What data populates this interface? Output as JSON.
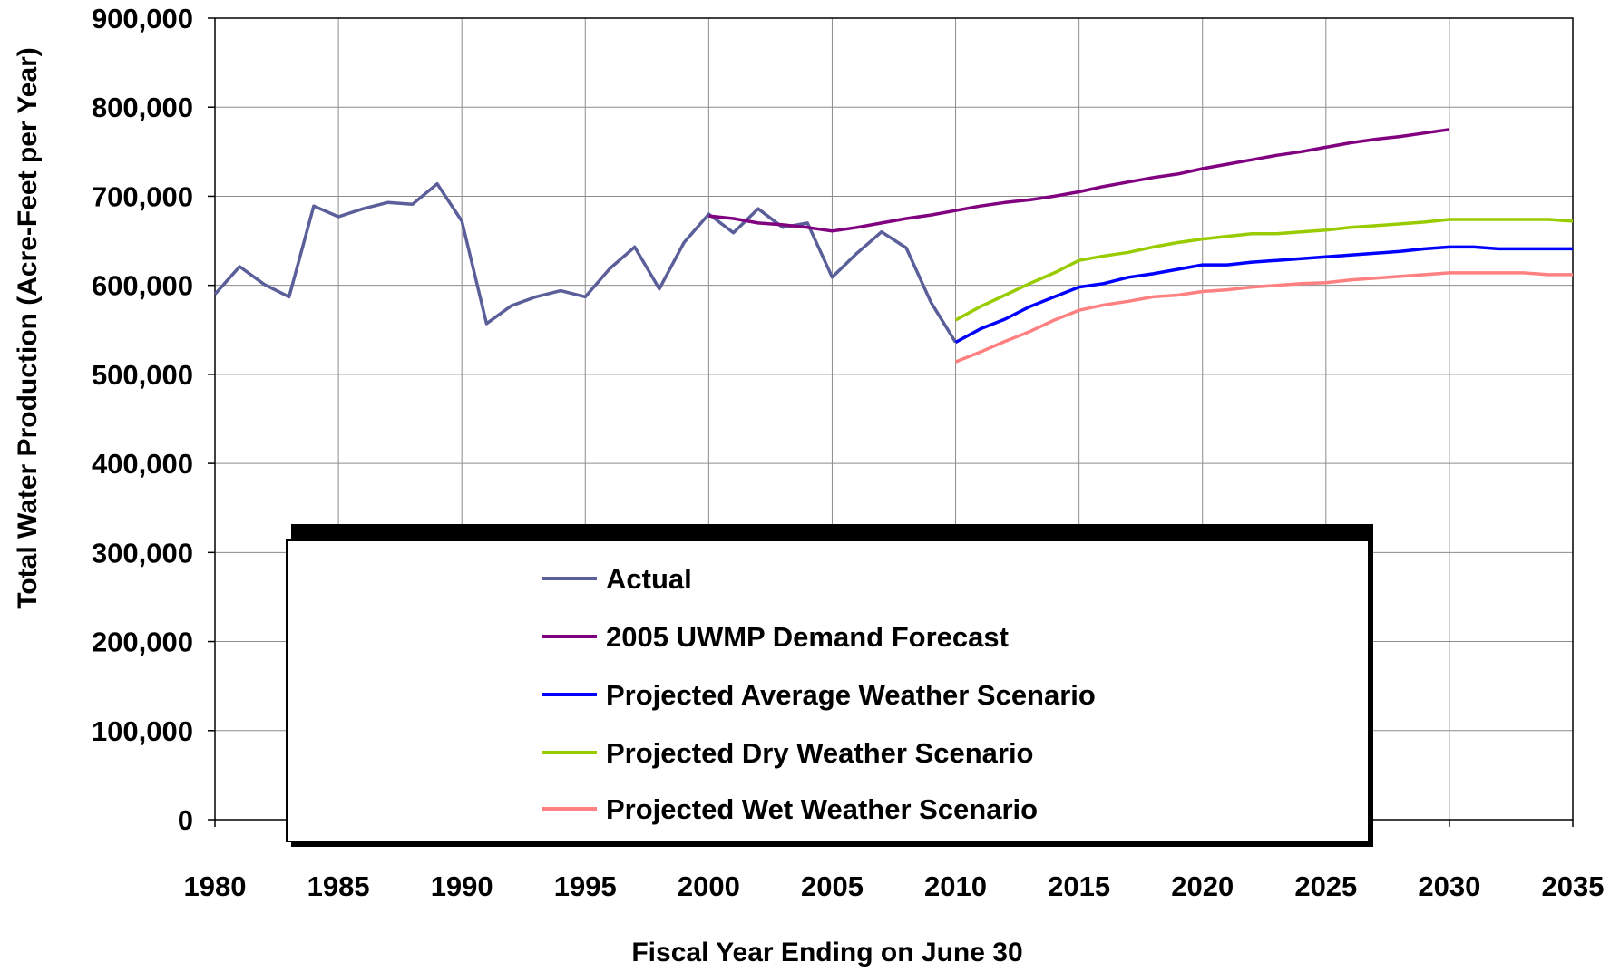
{
  "chart_data": {
    "type": "line",
    "title": "",
    "xlabel": "Fiscal Year Ending on June 30",
    "ylabel": "Total Water Production (Acre-Feet per Year)",
    "xlim": [
      1980,
      2035
    ],
    "ylim": [
      0,
      900000
    ],
    "x_ticks": [
      "1980",
      "1985",
      "1990",
      "1995",
      "2000",
      "2005",
      "2010",
      "2015",
      "2020",
      "2025",
      "2030",
      "2035"
    ],
    "y_ticks": [
      "0",
      "100,000",
      "200,000",
      "300,000",
      "400,000",
      "500,000",
      "600,000",
      "700,000",
      "800,000",
      "900,000"
    ],
    "grid": true,
    "legend_position": "bottom-center",
    "series": [
      {
        "name": "Actual",
        "color": "#5B5F99",
        "x": [
          1980,
          1981,
          1982,
          1983,
          1984,
          1985,
          1986,
          1987,
          1988,
          1989,
          1990,
          1991,
          1992,
          1993,
          1994,
          1995,
          1996,
          1997,
          1998,
          1999,
          2000,
          2001,
          2002,
          2003,
          2004,
          2005,
          2006,
          2007,
          2008,
          2009,
          2010
        ],
        "y": [
          590000,
          621000,
          601000,
          587000,
          689000,
          677000,
          686000,
          693000,
          691000,
          714000,
          672000,
          557000,
          577000,
          587000,
          594000,
          587000,
          619000,
          643000,
          596000,
          648000,
          680000,
          659000,
          686000,
          665000,
          670000,
          609000,
          636000,
          660000,
          642000,
          581000,
          536000
        ]
      },
      {
        "name": "2005 UWMP Demand Forecast",
        "color": "#800080",
        "x": [
          2000,
          2001,
          2002,
          2003,
          2004,
          2005,
          2006,
          2007,
          2008,
          2009,
          2010,
          2011,
          2012,
          2013,
          2014,
          2015,
          2016,
          2017,
          2018,
          2019,
          2020,
          2021,
          2022,
          2023,
          2024,
          2025,
          2026,
          2027,
          2028,
          2029,
          2030
        ],
        "y": [
          678000,
          675000,
          670000,
          668000,
          665000,
          661000,
          665000,
          670000,
          675000,
          679000,
          684000,
          689000,
          693000,
          696000,
          700000,
          705000,
          711000,
          716000,
          721000,
          725000,
          731000,
          736000,
          741000,
          746000,
          750000,
          755000,
          760000,
          764000,
          767000,
          771000,
          775000
        ]
      },
      {
        "name": "Projected Average Weather Scenario",
        "color": "#0000FF",
        "x": [
          2010,
          2011,
          2012,
          2013,
          2014,
          2015,
          2016,
          2017,
          2018,
          2019,
          2020,
          2021,
          2022,
          2023,
          2024,
          2025,
          2026,
          2027,
          2028,
          2029,
          2030,
          2031,
          2032,
          2033,
          2034,
          2035
        ],
        "y": [
          536000,
          551000,
          562000,
          576000,
          587000,
          598000,
          602000,
          609000,
          613000,
          618000,
          623000,
          623000,
          626000,
          628000,
          630000,
          632000,
          634000,
          636000,
          638000,
          641000,
          643000,
          643000,
          641000,
          641000,
          641000,
          641000
        ]
      },
      {
        "name": "Projected Dry Weather Scenario",
        "color": "#99CC00",
        "x": [
          2010,
          2011,
          2012,
          2013,
          2014,
          2015,
          2016,
          2017,
          2018,
          2019,
          2020,
          2021,
          2022,
          2023,
          2024,
          2025,
          2026,
          2027,
          2028,
          2029,
          2030,
          2031,
          2032,
          2033,
          2034,
          2035
        ],
        "y": [
          561000,
          576000,
          589000,
          602000,
          614000,
          628000,
          633000,
          637000,
          643000,
          648000,
          652000,
          655000,
          658000,
          658000,
          660000,
          662000,
          665000,
          667000,
          669000,
          671000,
          674000,
          674000,
          674000,
          674000,
          674000,
          672000
        ]
      },
      {
        "name": "Projected Wet Weather Scenario",
        "color": "#FF8080",
        "x": [
          2010,
          2011,
          2012,
          2013,
          2014,
          2015,
          2016,
          2017,
          2018,
          2019,
          2020,
          2021,
          2022,
          2023,
          2024,
          2025,
          2026,
          2027,
          2028,
          2029,
          2030,
          2031,
          2032,
          2033,
          2034,
          2035
        ],
        "y": [
          514000,
          525000,
          537000,
          548000,
          561000,
          572000,
          578000,
          582000,
          587000,
          589000,
          593000,
          595000,
          598000,
          600000,
          602000,
          603000,
          606000,
          608000,
          610000,
          612000,
          614000,
          614000,
          614000,
          614000,
          612000,
          612000
        ]
      }
    ]
  }
}
